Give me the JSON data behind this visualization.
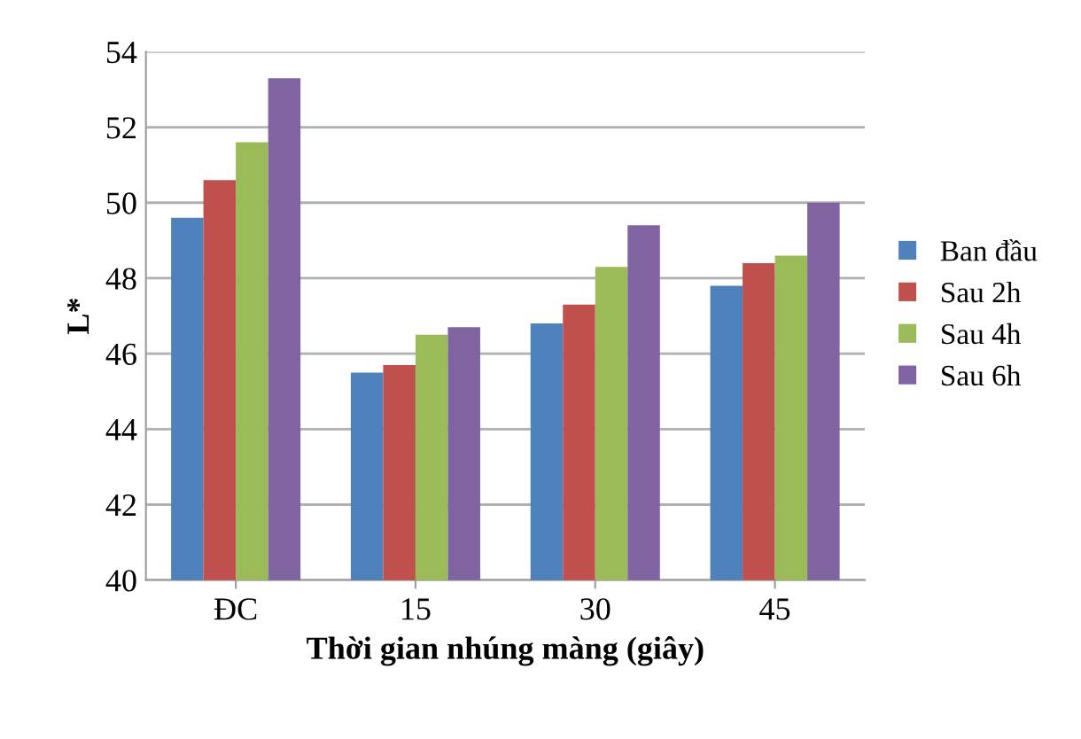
{
  "chart_data": {
    "type": "bar",
    "xlabel": "Thời gian nhúng màng (giây)",
    "ylabel": "L*",
    "categories": [
      "ĐC",
      "15",
      "30",
      "45"
    ],
    "series": [
      {
        "name": "Ban đầu",
        "color": "#4f81bd",
        "values": [
          49.6,
          45.5,
          46.8,
          47.8
        ]
      },
      {
        "name": "Sau 2h",
        "color": "#c0504d",
        "values": [
          50.6,
          45.7,
          47.3,
          48.4
        ]
      },
      {
        "name": "Sau 4h",
        "color": "#9bbb59",
        "values": [
          51.6,
          46.5,
          48.3,
          48.6
        ]
      },
      {
        "name": "Sau 6h",
        "color": "#8064a2",
        "values": [
          53.3,
          46.7,
          49.4,
          50.0
        ]
      }
    ],
    "ylim": [
      40,
      54
    ],
    "yticks": [
      40,
      42,
      44,
      46,
      48,
      50,
      52,
      54
    ],
    "grid": "y",
    "legend": "right"
  }
}
